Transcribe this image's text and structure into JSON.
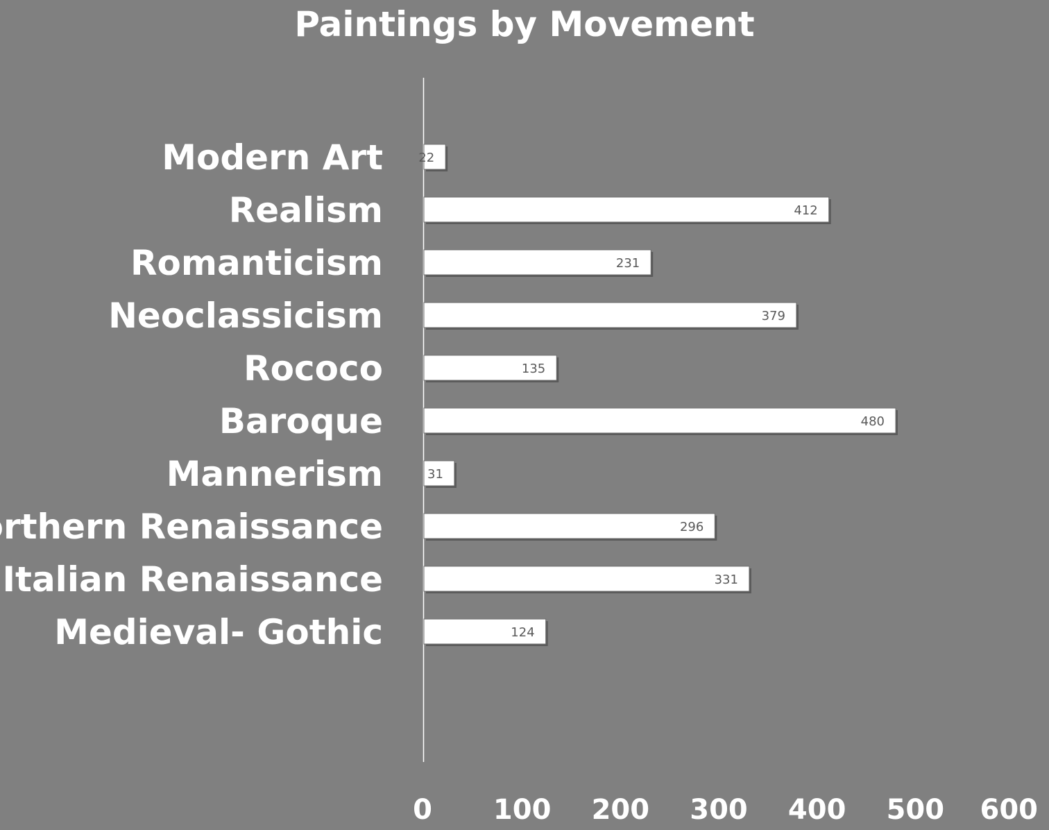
{
  "chart_data": {
    "type": "bar",
    "orientation": "horizontal",
    "title": "Paintings by Movement",
    "categories": [
      "Medieval- Gothic",
      "Italian Renaissance",
      "Northern Renaissance",
      "Mannerism",
      "Baroque",
      "Rococo",
      "Neoclassicism",
      "Romanticism",
      "Realism",
      "Modern Art"
    ],
    "values": [
      124,
      331,
      296,
      31,
      480,
      135,
      379,
      231,
      412,
      22
    ],
    "xlim": [
      0,
      600
    ],
    "xticks": [
      "0",
      "100",
      "200",
      "300",
      "400",
      "500",
      "600"
    ],
    "grid": false,
    "legend": "none",
    "data_labels": true,
    "colors": {
      "background": "#808080",
      "bar_fill": "#ffffff",
      "bar_shadow": "#5a5a5a",
      "text": "#ffffff",
      "data_label": "#595959"
    }
  }
}
